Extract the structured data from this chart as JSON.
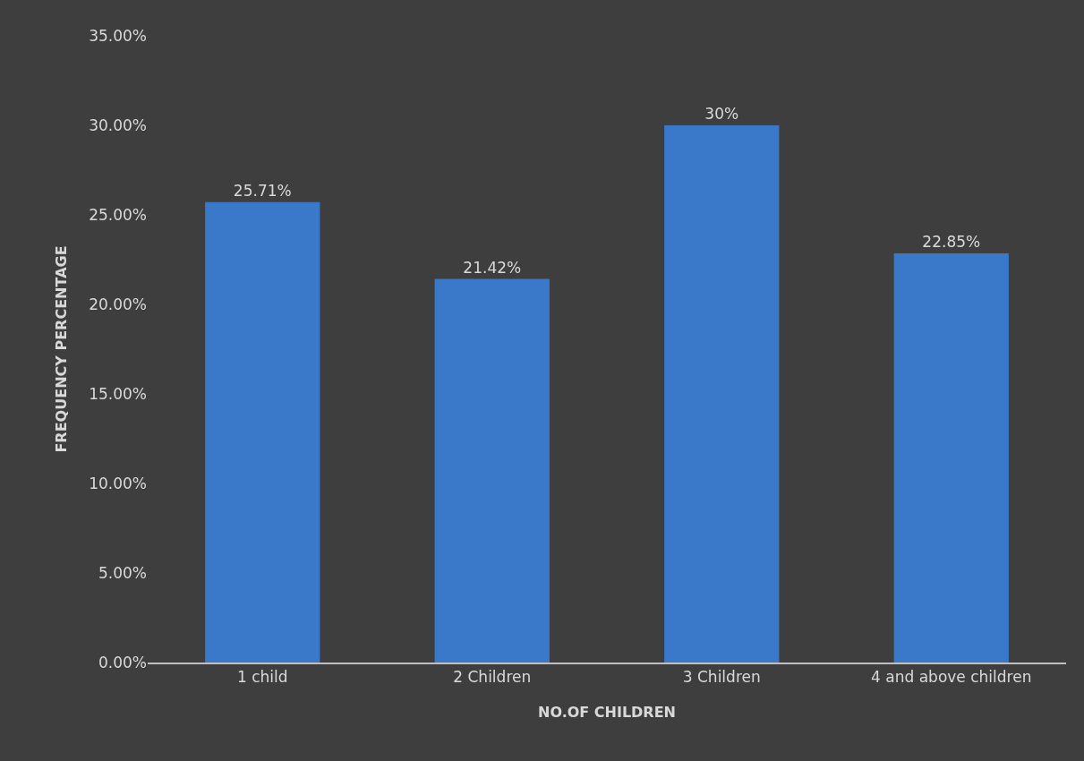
{
  "chart_data": {
    "type": "bar",
    "xlabel": "NO.OF CHILDREN",
    "ylabel": "FREQUENCY PERCENTAGE",
    "categories": [
      "1 child",
      "2 Children",
      "3 Children",
      "4 and above children"
    ],
    "values": [
      25.71,
      21.42,
      30,
      22.85
    ],
    "value_labels": [
      "25.71%",
      "21.42%",
      "30%",
      "22.85%"
    ],
    "color": "#3a78c9",
    "ylim": [
      0,
      35
    ],
    "yticks": [
      {
        "value": 0,
        "label": "0.00%"
      },
      {
        "value": 5,
        "label": "5.00%"
      },
      {
        "value": 10,
        "label": "10.00%"
      },
      {
        "value": 15,
        "label": "15.00%"
      },
      {
        "value": 20,
        "label": "20.00%"
      },
      {
        "value": 25,
        "label": "25.00%"
      },
      {
        "value": 30,
        "label": "30.00%"
      },
      {
        "value": 35,
        "label": "35.00%"
      }
    ],
    "grid": false
  }
}
